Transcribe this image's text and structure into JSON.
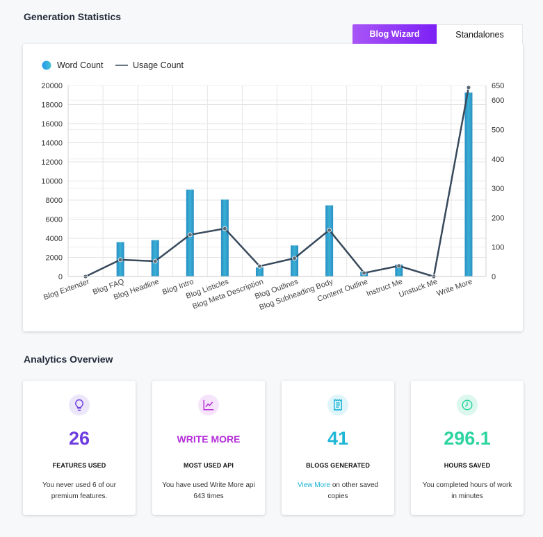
{
  "sections": {
    "generation_title": "Generation Statistics",
    "analytics_title": "Analytics Overview"
  },
  "tabs": [
    {
      "label": "Blog Wizard",
      "active": true
    },
    {
      "label": "Standalones",
      "active": false
    }
  ],
  "colors": {
    "bar": "#2e9fcc",
    "line": "#37495b",
    "purple": "#6d3ddf",
    "magenta": "#b52fd8",
    "cyan": "#1fb6d6",
    "teal": "#2dd4a0"
  },
  "chart_data": {
    "type": "bar",
    "legend": [
      "Word Count",
      "Usage Count"
    ],
    "categories": [
      "Blog Extender",
      "Blog FAQ",
      "Blog Headline",
      "Blog Intro",
      "Blog Listicles",
      "Blog Meta Description",
      "Blog Outlines",
      "Blog Subheading Body",
      "Content Outline",
      "Instruct Me",
      "Unstuck Me",
      "Write More"
    ],
    "series": [
      {
        "name": "Word Count",
        "axis": "left",
        "values": [
          0,
          3600,
          3800,
          9100,
          8050,
          950,
          3250,
          7450,
          500,
          1250,
          0,
          19250
        ]
      },
      {
        "name": "Usage Count",
        "axis": "right",
        "values": [
          0,
          57,
          52,
          142,
          163,
          35,
          62,
          158,
          12,
          36,
          0,
          643
        ]
      }
    ],
    "y_left": {
      "min": 0,
      "max": 20000,
      "ticks": [
        0,
        2000,
        4000,
        6000,
        8000,
        10000,
        12000,
        14000,
        16000,
        18000,
        20000
      ]
    },
    "y_right": {
      "min": 0,
      "max": 650,
      "ticks": [
        0,
        100,
        200,
        300,
        400,
        500,
        600,
        650
      ]
    }
  },
  "stats": [
    {
      "icon": "lightbulb-icon",
      "value": "26",
      "label": "FEATURES USED",
      "desc": "You never used 6 of our premium features."
    },
    {
      "icon": "chart-line-icon",
      "value": "WRITE MORE",
      "label": "MOST USED API",
      "desc": "You have used Write More api 643 times"
    },
    {
      "icon": "receipt-icon",
      "value": "41",
      "label": "BLOGS GENERATED",
      "link": "View More",
      "desc": " on other saved copies"
    },
    {
      "icon": "clock-icon",
      "value": "296.1",
      "label": "HOURS SAVED",
      "desc": "You completed hours of work in minutes"
    }
  ]
}
